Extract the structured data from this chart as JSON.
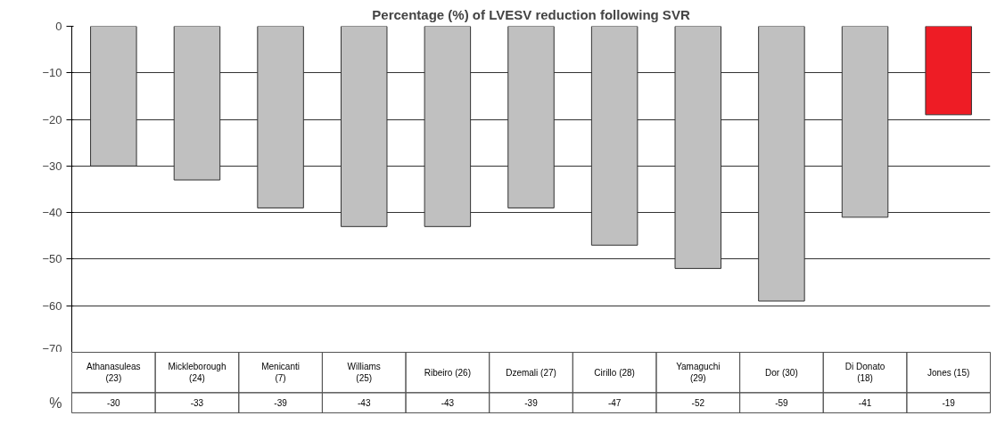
{
  "chart_data": {
    "type": "bar",
    "title": "Percentage (%) of LVESV reduction following SVR",
    "ylabel": "%",
    "categories": [
      "Athanasuleas (23)",
      "Mickleborough (24)",
      "Menicanti (7)",
      "Williams (25)",
      "Ribeiro (26)",
      "Dzemali (27)",
      "Cirillo (28)",
      "Yamaguchi (29)",
      "Dor (30)",
      "Di Donato (18)",
      "Jones (15)"
    ],
    "values": [
      -30,
      -33,
      -39,
      -43,
      -43,
      -39,
      -47,
      -52,
      -59,
      -41,
      -19
    ],
    "colors": [
      "#c0c0c0",
      "#c0c0c0",
      "#c0c0c0",
      "#c0c0c0",
      "#c0c0c0",
      "#c0c0c0",
      "#c0c0c0",
      "#c0c0c0",
      "#c0c0c0",
      "#c0c0c0",
      "#ee1c25"
    ],
    "ylim": [
      -70,
      0
    ],
    "yticks": [
      -70,
      -60,
      -50,
      -40,
      -30,
      -20,
      -10,
      0
    ],
    "grid": "y",
    "data_labels": true
  }
}
